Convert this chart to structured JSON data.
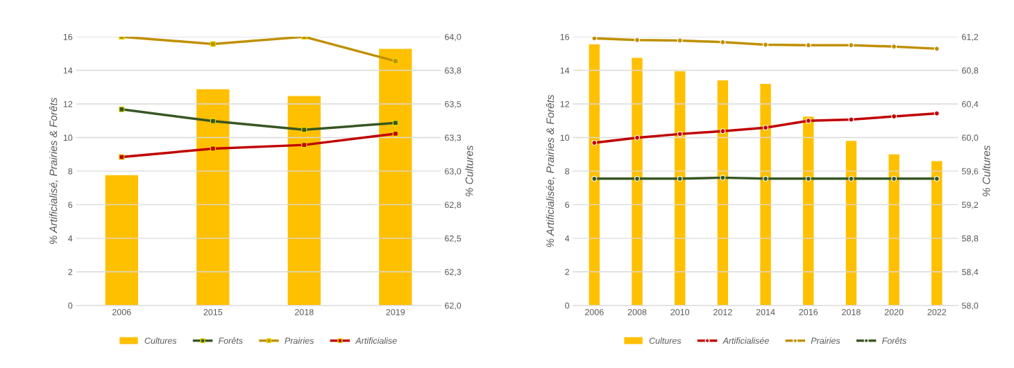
{
  "chart_data": [
    {
      "type": "bar",
      "categories": [
        "2006",
        "2015",
        "2018",
        "2019"
      ],
      "ylabel": "% Artificialisé, Prairies & Forêts",
      "y2label": "% Cultures",
      "ylim": [
        0,
        16
      ],
      "yticks": [
        0,
        2,
        4,
        6,
        8,
        10,
        12,
        14,
        16
      ],
      "y2lim": [
        62,
        64
      ],
      "y2ticks": [
        {
          "value": 62,
          "label": "62,0"
        },
        {
          "value": 62.25,
          "label": "62,3"
        },
        {
          "value": 62.5,
          "label": "62,5"
        },
        {
          "value": 62.75,
          "label": "62,8"
        },
        {
          "value": 63,
          "label": "63,0"
        },
        {
          "value": 63.25,
          "label": "63,3"
        },
        {
          "value": 63.5,
          "label": "63,5"
        },
        {
          "value": 63.75,
          "label": "63,8"
        },
        {
          "value": 64,
          "label": "64,0"
        }
      ],
      "grid": "y",
      "legend": "bottom",
      "marker": "square",
      "series": [
        {
          "name": "Cultures",
          "axis": "y2",
          "color": "#ffc000",
          "values": [
            62.97,
            63.61,
            63.56,
            63.91
          ]
        },
        {
          "name": "Forêts",
          "type": "line",
          "color": "#375623",
          "values": [
            11.68,
            10.98,
            10.46,
            10.87
          ]
        },
        {
          "name": "Prairies",
          "type": "line",
          "color": "#bf9000",
          "values": [
            16.0,
            15.57,
            16.0,
            14.55
          ]
        },
        {
          "name": "Artificialise",
          "type": "line",
          "color": "#c00000",
          "values": [
            8.84,
            9.34,
            9.56,
            10.23
          ]
        }
      ]
    },
    {
      "type": "bar",
      "categories": [
        "2006",
        "2008",
        "2010",
        "2012",
        "2014",
        "2016",
        "2018",
        "2020",
        "2022"
      ],
      "ylabel": "% Artificialisée, Prairies & Forêts",
      "y2label": "% Cultures",
      "ylim": [
        0,
        16
      ],
      "yticks": [
        0,
        2,
        4,
        6,
        8,
        10,
        12,
        14,
        16
      ],
      "y2lim": [
        58,
        61.2
      ],
      "y2ticks": [
        {
          "value": 58,
          "label": "58,0"
        },
        {
          "value": 58.4,
          "label": "58,4"
        },
        {
          "value": 58.8,
          "label": "58,8"
        },
        {
          "value": 59.2,
          "label": "59,2"
        },
        {
          "value": 59.6,
          "label": "59,6"
        },
        {
          "value": 60,
          "label": "60,0"
        },
        {
          "value": 60.4,
          "label": "60,4"
        },
        {
          "value": 60.8,
          "label": "60,8"
        },
        {
          "value": 61.2,
          "label": "61,2"
        }
      ],
      "grid": "y",
      "legend": "bottom",
      "marker": "circle",
      "series": [
        {
          "name": "Cultures",
          "axis": "y2",
          "color": "#ffc000",
          "values": [
            61.11,
            60.95,
            60.79,
            60.68,
            60.64,
            60.25,
            59.96,
            59.8,
            59.72
          ]
        },
        {
          "name": "Artificialisée",
          "type": "line",
          "color": "#c00000",
          "values": [
            9.69,
            9.99,
            10.21,
            10.38,
            10.59,
            11.0,
            11.07,
            11.26,
            11.44
          ]
        },
        {
          "name": "Prairies",
          "type": "line",
          "color": "#bf9000",
          "values": [
            15.91,
            15.81,
            15.78,
            15.68,
            15.53,
            15.5,
            15.5,
            15.42,
            15.29
          ]
        },
        {
          "name": "Forêts",
          "type": "line",
          "color": "#375623",
          "values": [
            7.55,
            7.55,
            7.55,
            7.61,
            7.55,
            7.55,
            7.55,
            7.55,
            7.55
          ]
        }
      ]
    }
  ]
}
